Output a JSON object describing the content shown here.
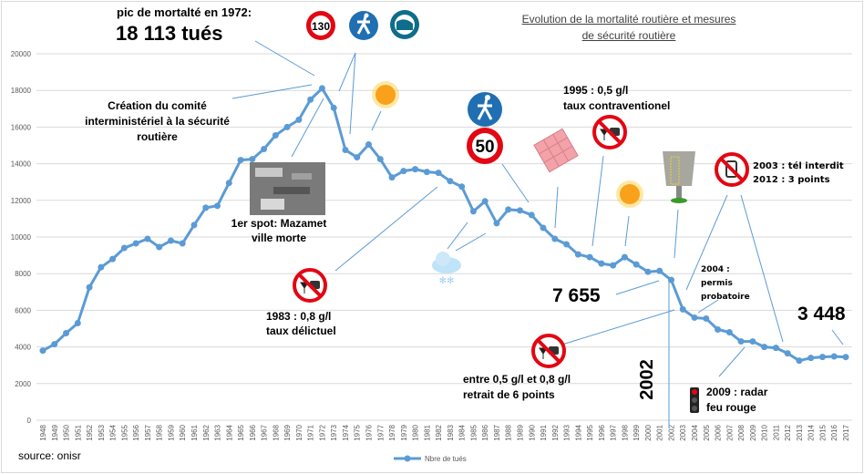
{
  "title": {
    "line1": "Evolution de la mortalité routière et mesures",
    "line2": "de sécurité routière"
  },
  "source": "source: onisr",
  "legend": {
    "label": "Nbre de tués",
    "color": "#5b9bd5"
  },
  "annotations": {
    "peak_line1": "pic de mortalté en 1972:",
    "peak_line2": "18 113 tués",
    "comite": [
      "Création du comité",
      "interministériel à la sécurité",
      "routière"
    ],
    "spot": [
      "1er spot: Mazamet",
      "ville morte"
    ],
    "a1983": [
      "1983 : 0,8 g/l",
      "taux délictuel"
    ],
    "a1995": [
      "1995 : 0,5 g/l",
      "taux contraventionel"
    ],
    "phone": [
      "2003 : tél interdit",
      "2012 : 3 points"
    ],
    "permis": [
      "2004 :",
      "permis",
      "probatoire"
    ],
    "v2002": "7 655",
    "v2017": "3 448",
    "retrait": [
      "entre 0,5 g/l et 0,8 g/l",
      "retrait de 6 points"
    ],
    "year2002": "2002",
    "radar": [
      "2009 : radar",
      "feu rouge"
    ],
    "speed130": "130",
    "speed50": "50"
  },
  "icons": [
    "speed-limit-130-icon",
    "pedestrian-sign-icon",
    "seatbelt-sign-icon",
    "sun-icon",
    "snow-cloud-icon",
    "speed-limit-50-icon",
    "driving-licence-icon",
    "no-drink-driving-icon",
    "speed-camera-icon",
    "no-phone-icon",
    "traffic-light-icon",
    "mazamet-photo"
  ],
  "chart_data": {
    "type": "line",
    "title": "Evolution de la mortalité routière et mesures de sécurité routière",
    "ylim": [
      0,
      20000
    ],
    "yticks": [
      0,
      2000,
      4000,
      6000,
      8000,
      10000,
      12000,
      14000,
      16000,
      18000,
      20000
    ],
    "grid": true,
    "legend_position": "bottom",
    "x": [
      1948,
      1949,
      1950,
      1951,
      1952,
      1953,
      1954,
      1955,
      1956,
      1957,
      1958,
      1959,
      1960,
      1961,
      1962,
      1963,
      1964,
      1965,
      1966,
      1967,
      1968,
      1969,
      1970,
      1971,
      1972,
      1973,
      1974,
      1975,
      1976,
      1977,
      1978,
      1979,
      1980,
      1981,
      1982,
      1983,
      1984,
      1985,
      1986,
      1987,
      1988,
      1989,
      1990,
      1991,
      1992,
      1993,
      1994,
      1995,
      1996,
      1997,
      1998,
      1999,
      2000,
      2001,
      2002,
      2003,
      2004,
      2005,
      2006,
      2007,
      2008,
      2009,
      2010,
      2011,
      2012,
      2013,
      2014,
      2015,
      2016,
      2017
    ],
    "series": [
      {
        "name": "Nbre de tués",
        "color": "#5b9bd5",
        "values": [
          3800,
          4150,
          4750,
          5300,
          7250,
          8350,
          8800,
          9400,
          9650,
          9900,
          9450,
          9800,
          9650,
          10650,
          11600,
          11700,
          12950,
          14200,
          14250,
          14800,
          15550,
          16000,
          16400,
          17500,
          18113,
          17050,
          14750,
          14350,
          15050,
          14250,
          13250,
          13600,
          13700,
          13550,
          13500,
          13050,
          12750,
          11400,
          11950,
          10750,
          11500,
          11450,
          11200,
          10500,
          9900,
          9600,
          9050,
          8900,
          8550,
          8450,
          8900,
          8500,
          8100,
          8150,
          7655,
          6050,
          5600,
          5550,
          4950,
          4800,
          4300,
          4300,
          4000,
          3950,
          3650,
          3250,
          3400,
          3450,
          3480,
          3448
        ]
      }
    ]
  }
}
